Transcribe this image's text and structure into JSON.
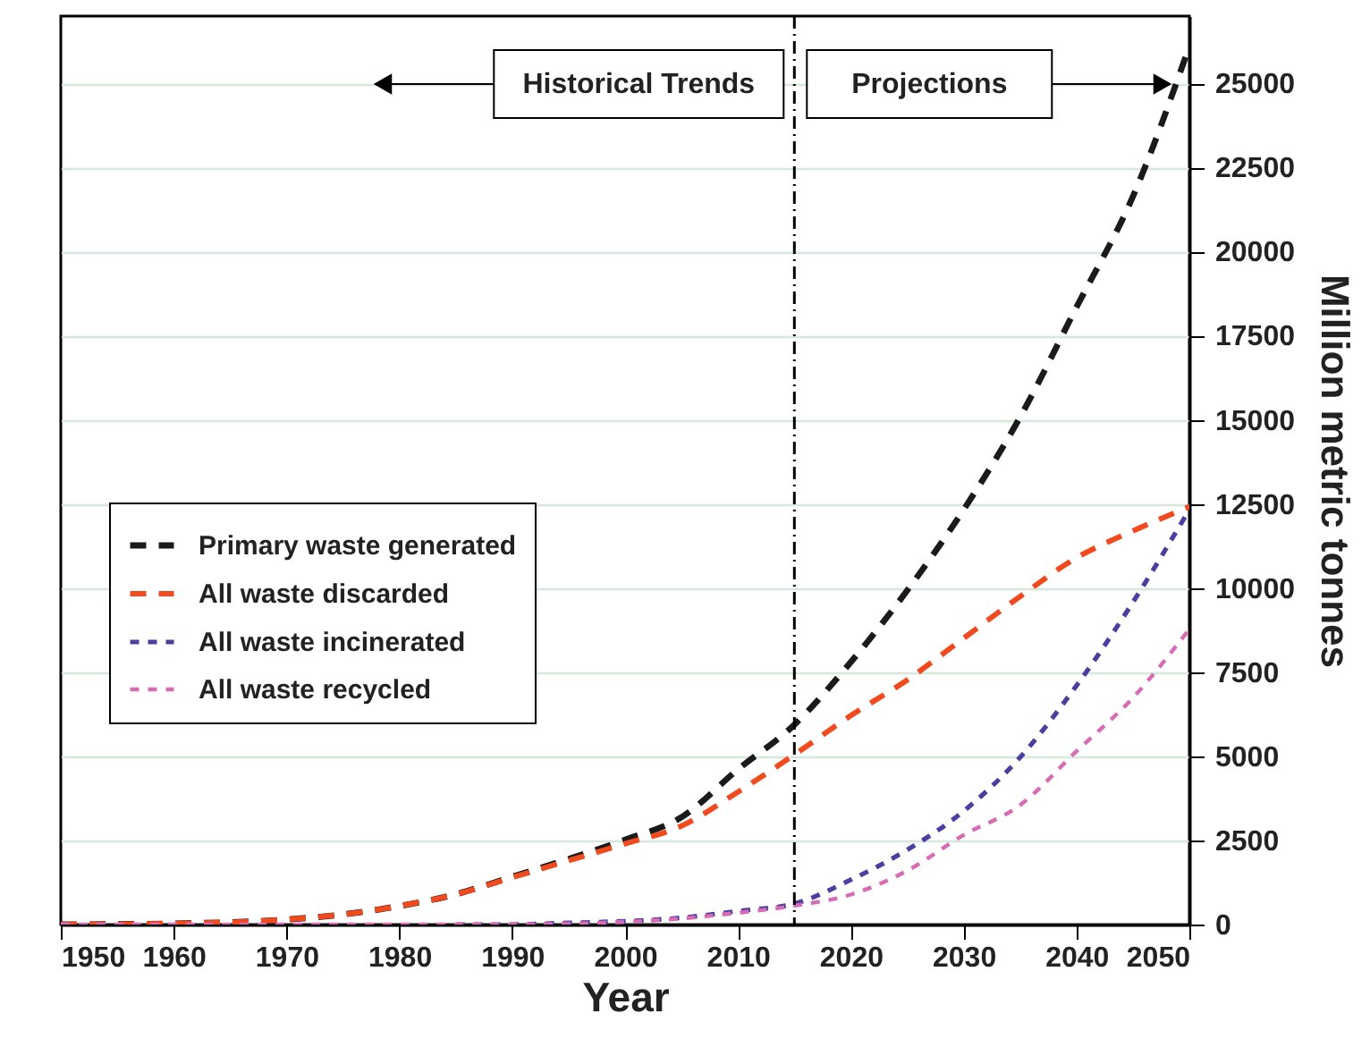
{
  "chart_data": {
    "type": "line",
    "xlabel": "Year",
    "ylabel": "Million metric tonnes",
    "x": [
      1950,
      1960,
      1970,
      1975,
      1980,
      1985,
      1990,
      1995,
      2000,
      2005,
      2010,
      2015,
      2020,
      2025,
      2030,
      2035,
      2040,
      2045,
      2050
    ],
    "series": [
      {
        "name": "Primary waste generated",
        "color": "#1a1a1a",
        "values": [
          0,
          30,
          150,
          300,
          550,
          900,
          1420,
          1950,
          2520,
          3190,
          4610,
          5940,
          7800,
          9930,
          12330,
          15080,
          18350,
          21640,
          26100
        ]
      },
      {
        "name": "All waste discarded",
        "color": "#f04a1e",
        "values": [
          0,
          30,
          150,
          300,
          550,
          900,
          1400,
          1900,
          2400,
          2930,
          3940,
          5050,
          6210,
          7270,
          8510,
          9750,
          10900,
          11700,
          12420
        ]
      },
      {
        "name": "All waste incinerated",
        "color": "#4a3fa0",
        "values": [
          null,
          null,
          null,
          null,
          null,
          0,
          0,
          50,
          100,
          200,
          400,
          620,
          1330,
          2220,
          3370,
          4970,
          7100,
          9580,
          12330
        ]
      },
      {
        "name": "All waste recycled",
        "color": "#d86bb5",
        "values": [
          0,
          0,
          0,
          0,
          0,
          0,
          0,
          30,
          80,
          180,
          350,
          560,
          890,
          1600,
          2660,
          3550,
          5150,
          6740,
          8780
        ]
      }
    ],
    "xlim": [
      1950,
      2050
    ],
    "xticks": [
      1950,
      1960,
      1970,
      1980,
      1990,
      2000,
      2010,
      2020,
      2030,
      2040,
      2050
    ],
    "ylim": [
      0,
      27000
    ],
    "yticks": [
      0,
      2500,
      5000,
      7500,
      10000,
      12500,
      15000,
      17500,
      20000,
      22500,
      25000
    ],
    "ref_lines": [
      {
        "axis": "x",
        "value": 2015,
        "line_style": "dashdot",
        "color": "#000000"
      }
    ],
    "annotations": [
      "Historical Trends",
      "Projections"
    ],
    "grid": "y",
    "legend": "left",
    "line_style": "dashed",
    "marker": "none"
  }
}
